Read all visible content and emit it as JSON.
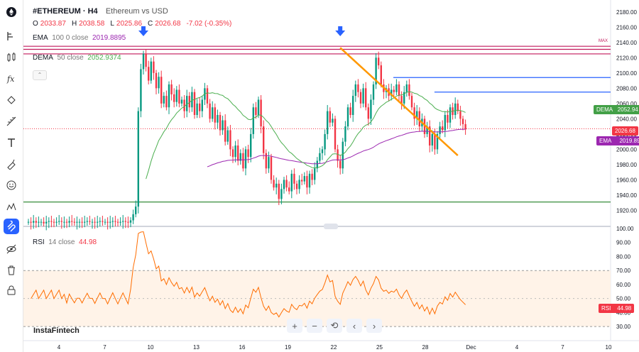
{
  "header": {
    "symbol": "#ETHEREUM · H4",
    "description": "Ethereum vs USD",
    "ohlc": [
      {
        "k": "O",
        "v": "2033.87"
      },
      {
        "k": "H",
        "v": "2038.58"
      },
      {
        "k": "L",
        "v": "2025.86"
      },
      {
        "k": "C",
        "v": "2026.68"
      }
    ],
    "change": "-7.02 (-0.35%)"
  },
  "indicators": {
    "ema": {
      "name": "EMA",
      "params": "100  0  close",
      "value": "2019.8895",
      "color": "#9c27b0",
      "badge_label": "EMA",
      "badge_value": "2019.89",
      "badge_color": "#9c27b0"
    },
    "dema": {
      "name": "DEMA",
      "params": "50  close",
      "value": "2052.9374",
      "color": "#4caf50",
      "badge_label": "DEMA",
      "badge_value": "2052.94",
      "badge_color": "#43a047"
    },
    "rsi": {
      "name": "RSI",
      "params": "14  close",
      "value": "44.98",
      "color": "#ff6d00",
      "badge_label": "RSI",
      "badge_value": "44.98",
      "badge_color": "#f23645"
    }
  },
  "price_badge": {
    "value": "2026.68",
    "color": "#f23645"
  },
  "max_label": "MAX",
  "watermark": "InstaFintech",
  "toolbar": [
    {
      "name": "logo-icon"
    },
    {
      "name": "crosshair-icon"
    },
    {
      "name": "trend-line-icon"
    },
    {
      "name": "fib-icon"
    },
    {
      "name": "pattern-icon"
    },
    {
      "name": "brush-icon"
    },
    {
      "name": "text-icon"
    },
    {
      "name": "measure-icon"
    },
    {
      "name": "emoji-icon"
    },
    {
      "name": "forecast-icon"
    },
    {
      "name": "magnet-icon"
    },
    {
      "name": "hide-icon"
    },
    {
      "name": "trash-icon"
    },
    {
      "name": "lock-icon"
    }
  ],
  "nav_buttons": [
    "+",
    "−",
    "⟲",
    "‹",
    "›"
  ],
  "chart_data": {
    "type": "candlestick",
    "price_axis": {
      "range": [
        1900,
        2190
      ],
      "ticks": [
        1920,
        1940,
        1960,
        1980,
        2000,
        2020,
        2040,
        2060,
        2080,
        2100,
        2120,
        2140,
        2160,
        2180
      ]
    },
    "rsi_axis": {
      "range": [
        25,
        100
      ],
      "ticks": [
        30,
        40,
        50,
        60,
        70,
        80,
        90,
        100
      ],
      "band": [
        30,
        70
      ]
    },
    "x_ticks": [
      "4",
      "7",
      "10",
      "13",
      "16",
      "19",
      "22",
      "25",
      "28",
      "Dec",
      "4",
      "7",
      "10"
    ],
    "horizontal_levels": [
      {
        "price": 2135,
        "color": "#c2185b"
      },
      {
        "price": 2131,
        "color": "#c2185b"
      },
      {
        "price": 2125,
        "color": "#c2185b"
      },
      {
        "price": 2094,
        "color": "#2962ff",
        "from": 0.63
      },
      {
        "price": 2075,
        "color": "#2962ff",
        "from": 0.7
      },
      {
        "price": 1931,
        "color": "#388e3c"
      },
      {
        "price": 2027,
        "color": "#f23645",
        "dotted": true
      }
    ],
    "trendline": {
      "from_bar": 122,
      "from_price": 2133,
      "to_bar": 168,
      "to_price": 1992,
      "color": "#ff9800"
    },
    "arrows": [
      {
        "bar": 45,
        "price": 2150
      },
      {
        "bar": 122,
        "price": 2150
      }
    ],
    "closes": [
      1905,
      1904,
      1906,
      1904,
      1905,
      1905,
      1903,
      1905,
      1906,
      1905,
      1904,
      1905,
      1906,
      1905,
      1905,
      1904,
      1906,
      1905,
      1904,
      1905,
      1905,
      1904,
      1905,
      1906,
      1905,
      1905,
      1904,
      1905,
      1906,
      1905,
      1905,
      1904,
      1905,
      1906,
      1905,
      1904,
      1905,
      1906,
      1905,
      1904,
      1907,
      1915,
      1925,
      2050,
      2105,
      2125,
      2108,
      2090,
      2115,
      2100,
      2080,
      2095,
      2060,
      2070,
      2055,
      2085,
      2072,
      2062,
      2078,
      2060,
      2065,
      2050,
      2070,
      2055,
      2075,
      2045,
      2060,
      2050,
      2065,
      2080,
      2060,
      2040,
      2055,
      2035,
      2045,
      2025,
      2038,
      2010,
      2025,
      2000,
      1990,
      2005,
      1985,
      1995,
      1975,
      2000,
      1990,
      2020,
      2055,
      2045,
      2065,
      2030,
      1995,
      1975,
      1990,
      1960,
      1950,
      1955,
      1935,
      1948,
      1960,
      1950,
      1945,
      1968,
      1955,
      1948,
      1960,
      1958,
      1965,
      1950,
      1968,
      1960,
      1975,
      1985,
      1995,
      2000,
      2020,
      2050,
      2035,
      2040,
      2000,
      1985,
      1975,
      2010,
      2030,
      2055,
      2045,
      2070,
      2085,
      2075,
      2060,
      2080,
      2055,
      2040,
      2065,
      2085,
      2120,
      2110,
      2085,
      2075,
      2080,
      2070,
      2078,
      2075,
      2085,
      2070,
      2060,
      2075,
      2085,
      2070,
      2055,
      2040,
      2050,
      2030,
      2040,
      2020,
      2030,
      2005,
      2020,
      2000,
      2020,
      2030,
      2025,
      2045,
      2035,
      2055,
      2045,
      2060,
      2050,
      2040,
      2033,
      2026
    ]
  }
}
